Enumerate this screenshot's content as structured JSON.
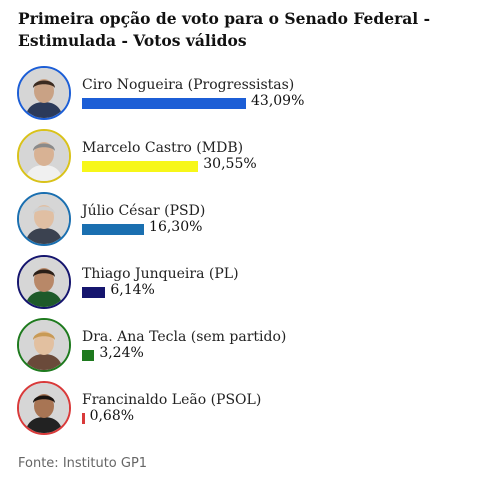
{
  "chart_data": {
    "type": "bar",
    "orientation": "horizontal",
    "title": "Primeira opção de voto para o Senado Federal - Estimulada - Votos válidos",
    "categories": [
      "Ciro Nogueira (Progressistas)",
      "Marcelo Castro (MDB)",
      "Júlio César (PSD)",
      "Thiago Junqueira (PL)",
      "Dra. Ana Tecla (sem partido)",
      "Francinaldo Leão (PSOL)"
    ],
    "values": [
      43.09,
      30.55,
      16.3,
      6.14,
      3.24,
      0.68
    ],
    "value_labels": [
      "43,09%",
      "30,55%",
      "16,30%",
      "6,14%",
      "3,24%",
      "0,68%"
    ],
    "colors": [
      "#1c5ed6",
      "#f7f719",
      "#1a6fb0",
      "#15156e",
      "#1e7a1e",
      "#d93a3a"
    ],
    "avatar_ring_colors": [
      "#1c5ed6",
      "#d9c21a",
      "#1a6fb0",
      "#15156e",
      "#1e7a1e",
      "#d93a3a"
    ],
    "xlim": [
      0,
      43.09
    ],
    "grid": false,
    "legend": "none"
  },
  "source": "Fonte: Instituto GP1"
}
